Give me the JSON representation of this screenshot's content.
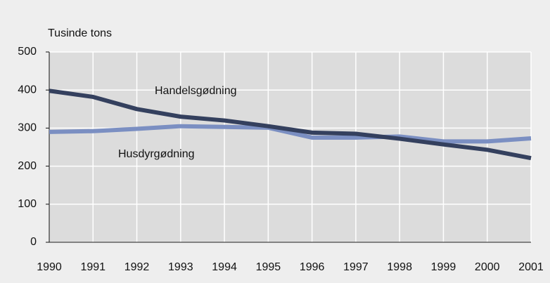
{
  "chart_data": {
    "type": "line",
    "ylabel": "Tusinde tons",
    "categories": [
      "1990",
      "1991",
      "1992",
      "1993",
      "1994",
      "1995",
      "1996",
      "1997",
      "1998",
      "1999",
      "2000",
      "2001"
    ],
    "series": [
      {
        "name": "Handelsgødning",
        "color": "#34405e",
        "values": [
          398,
          382,
          350,
          330,
          320,
          305,
          288,
          285,
          272,
          257,
          243,
          221
        ]
      },
      {
        "name": "Husdyrgødning",
        "color": "#7b8fc2",
        "values": [
          290,
          292,
          298,
          305,
          303,
          301,
          275,
          275,
          278,
          265,
          265,
          273
        ]
      }
    ],
    "ylim": [
      0,
      500
    ],
    "yticks": [
      0,
      100,
      200,
      300,
      400,
      500
    ],
    "grid": true
  }
}
